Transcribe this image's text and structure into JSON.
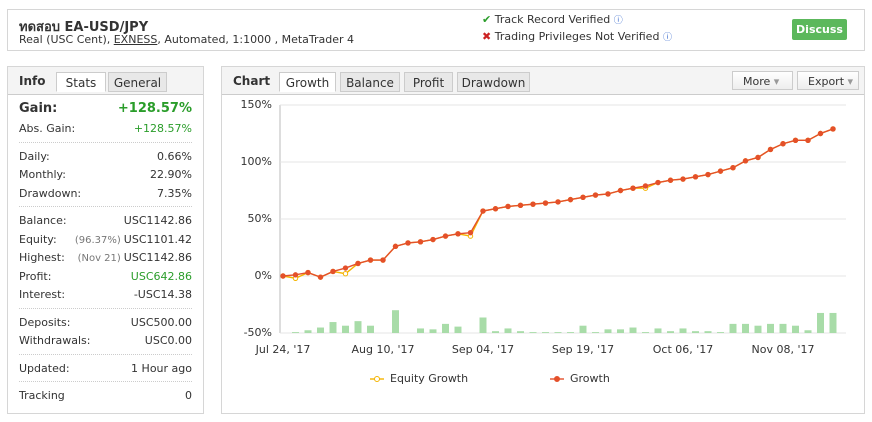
{
  "header": {
    "title": "ทดสอบ EA-USD/JPY",
    "subtitle_start": "Real (USC Cent), ",
    "broker": "EXNESS",
    "subtitle_end": ", Automated, 1:1000 , MetaTrader 4",
    "verified": "Track Record Verified",
    "not_verified": "Trading Privileges Not Verified",
    "button": "Discuss"
  },
  "info": {
    "label": "Info",
    "tabs": [
      "Stats",
      "General"
    ],
    "groups": [
      [
        {
          "label": "Gain:",
          "value": "+128.57%",
          "highlight": true,
          "big": true
        },
        {
          "label": "Abs. Gain:",
          "value": "+128.57%",
          "highlight": true
        }
      ],
      [
        {
          "label": "Daily:",
          "value": "0.66%"
        },
        {
          "label": "Monthly:",
          "value": "22.90%"
        },
        {
          "label": "Drawdown:",
          "value": "7.35%"
        }
      ],
      [
        {
          "label": "Balance:",
          "value": "USC1142.86"
        },
        {
          "label": "Equity:",
          "note": "(96.37%)",
          "value": "USC1101.42"
        },
        {
          "label": "Highest:",
          "note": "(Nov 21)",
          "value": "USC1142.86"
        },
        {
          "label": "Profit:",
          "value": "USC642.86",
          "highlight": true
        },
        {
          "label": "Interest:",
          "value": "-USC14.38"
        }
      ],
      [
        {
          "label": "Deposits:",
          "value": "USC500.00"
        },
        {
          "label": "Withdrawals:",
          "value": "USC0.00"
        }
      ],
      [
        {
          "label": "Updated:",
          "value": "1 Hour ago"
        }
      ],
      [
        {
          "label": "Tracking",
          "value": "0"
        }
      ]
    ]
  },
  "chart_panel": {
    "label": "Chart",
    "tabs": [
      "Growth",
      "Balance",
      "Profit",
      "Drawdown"
    ],
    "buttons": [
      "More",
      "Export"
    ]
  },
  "chart_data": {
    "type": "line",
    "categories": [
      "Jul 24, '17",
      null,
      null,
      null,
      null,
      null,
      null,
      null,
      "Aug 10, '17",
      null,
      null,
      null,
      null,
      null,
      null,
      null,
      "Sep 04, '17",
      null,
      null,
      null,
      null,
      null,
      null,
      null,
      "Sep 19, '17",
      null,
      null,
      null,
      null,
      null,
      null,
      null,
      "Oct 06, '17",
      null,
      null,
      null,
      null,
      null,
      null,
      null,
      "Nov 08, '17",
      null,
      null,
      null,
      null
    ],
    "series": [
      {
        "name": "Equity Growth",
        "color": "#f4b400",
        "values": [
          0,
          -2,
          3,
          -1,
          4,
          2,
          11,
          14,
          14,
          26,
          29,
          30,
          32,
          35,
          37,
          35,
          57,
          59,
          61,
          62,
          63,
          64,
          65,
          67,
          69,
          71,
          72,
          75,
          77,
          77,
          82,
          84,
          85,
          87,
          89,
          92,
          95,
          101,
          104,
          111,
          116,
          119,
          119,
          125,
          129
        ]
      },
      {
        "name": "Growth",
        "color": "#e4502a",
        "values": [
          0,
          1,
          3,
          -1,
          4,
          7,
          11,
          14,
          14,
          26,
          29,
          30,
          32,
          35,
          37,
          38,
          57,
          59,
          61,
          62,
          63,
          64,
          65,
          67,
          69,
          71,
          72,
          75,
          77,
          79,
          82,
          84,
          85,
          87,
          89,
          92,
          95,
          101,
          104,
          111,
          116,
          119,
          119,
          125,
          129
        ]
      }
    ],
    "bars": {
      "color": "#a8dca8",
      "axis": "y2",
      "values": [
        0,
        1,
        3,
        6,
        12,
        8,
        13,
        8,
        0,
        25,
        0,
        5,
        4,
        10,
        7,
        0,
        17,
        2,
        5,
        2,
        1,
        1,
        1,
        1,
        8,
        1,
        4,
        4,
        6,
        1,
        5,
        2,
        5,
        2,
        2,
        1,
        10,
        10,
        8,
        10,
        10,
        8,
        3,
        22,
        22
      ]
    },
    "ylim": [
      -50,
      150
    ],
    "yticks": [
      {
        "value": 150,
        "label": "150%"
      },
      {
        "value": 100,
        "label": "100%"
      },
      {
        "value": 50,
        "label": "50%"
      },
      {
        "value": 0,
        "label": "0%"
      },
      {
        "value": -50,
        "label": "-50%"
      }
    ],
    "y2lim": [
      0,
      250
    ],
    "grid": true
  }
}
